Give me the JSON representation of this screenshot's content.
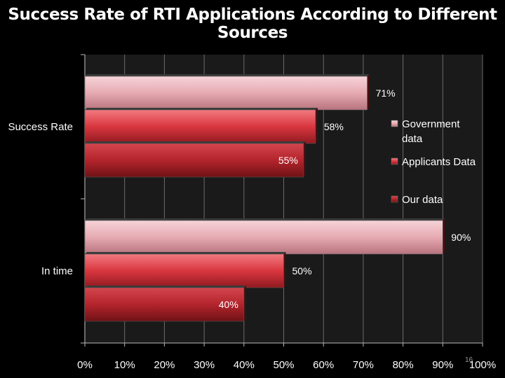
{
  "chart_data": {
    "type": "bar",
    "orientation": "horizontal",
    "title": "Success Rate of RTI Applications According to Different Sources",
    "categories": [
      "Success Rate",
      "In time"
    ],
    "series": [
      {
        "name": "Government data",
        "values": [
          71,
          90
        ],
        "labels": [
          "71%",
          "90%"
        ],
        "color": "#e4aab2"
      },
      {
        "name": "Applicants Data",
        "values": [
          58,
          50
        ],
        "labels": [
          "58%",
          "50%"
        ],
        "color": "#d4333c"
      },
      {
        "name": "Our data",
        "values": [
          55,
          40
        ],
        "labels": [
          "55%",
          "40%"
        ],
        "color": "#b5232b"
      }
    ],
    "xlim": [
      0,
      100
    ],
    "xticks": [
      "0%",
      "10%",
      "20%",
      "30%",
      "40%",
      "50%",
      "60%",
      "70%",
      "80%",
      "90%",
      "100%"
    ],
    "legend": [
      "Government data",
      "Applicants Data",
      "Our data"
    ],
    "legend_position": "right",
    "grid": "vertical"
  },
  "slide_number": "16"
}
